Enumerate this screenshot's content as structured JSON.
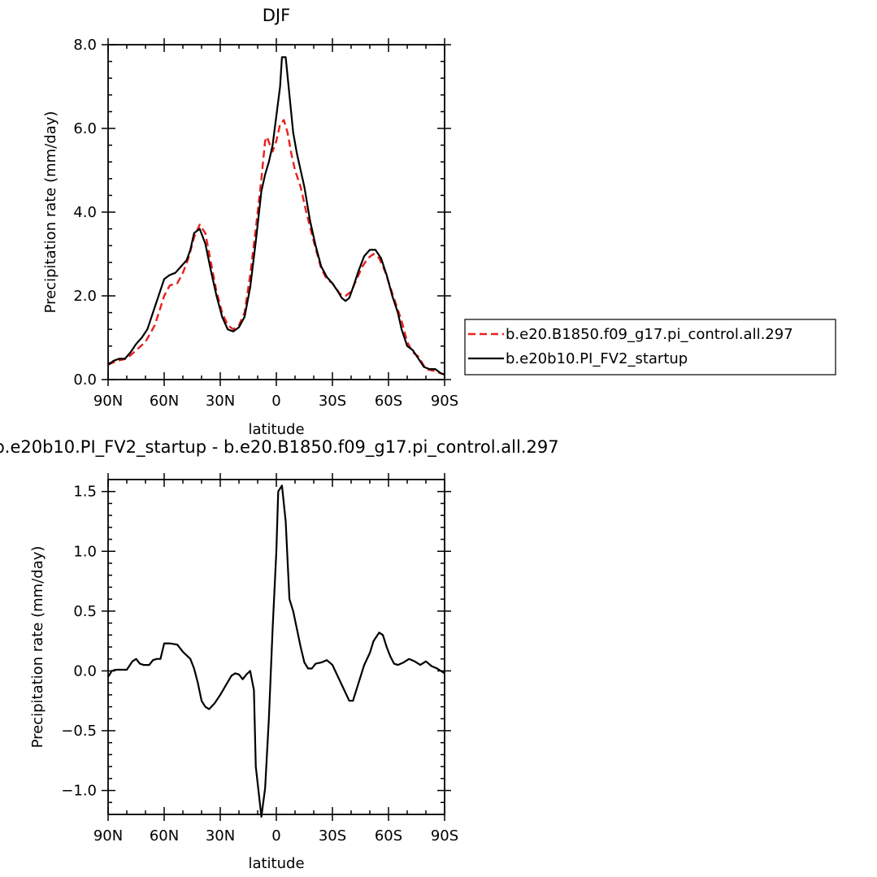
{
  "chart_data": [
    {
      "type": "line",
      "title": "DJF",
      "xlabel": "latitude",
      "ylabel": "Precipitation rate (mm/day)",
      "xlim": [
        90,
        -90
      ],
      "ylim": [
        0,
        8
      ],
      "x_ticks": [
        {
          "value": 90,
          "label": "90N"
        },
        {
          "value": 60,
          "label": "60N"
        },
        {
          "value": 30,
          "label": "30N"
        },
        {
          "value": 0,
          "label": "0"
        },
        {
          "value": -30,
          "label": "30S"
        },
        {
          "value": -60,
          "label": "60S"
        },
        {
          "value": -90,
          "label": "90S"
        }
      ],
      "y_ticks": [
        {
          "value": 0,
          "label": "0.0"
        },
        {
          "value": 2,
          "label": "2.0"
        },
        {
          "value": 4,
          "label": "4.0"
        },
        {
          "value": 6,
          "label": "6.0"
        },
        {
          "value": 8,
          "label": "8.0"
        }
      ],
      "legend_position": "right",
      "series": [
        {
          "name": "b.e20.B1850.f09_g17.pi_control.all.297",
          "color": "#e8201c",
          "dash": "dashed",
          "points": [
            [
              90,
              0.36
            ],
            [
              85,
              0.45
            ],
            [
              80,
              0.5
            ],
            [
              75,
              0.7
            ],
            [
              70,
              0.9
            ],
            [
              65,
              1.3
            ],
            [
              60,
              2.0
            ],
            [
              57,
              2.25
            ],
            [
              53,
              2.3
            ],
            [
              50,
              2.55
            ],
            [
              47,
              2.9
            ],
            [
              44,
              3.4
            ],
            [
              41,
              3.7
            ],
            [
              38,
              3.5
            ],
            [
              35,
              2.8
            ],
            [
              32,
              2.1
            ],
            [
              29,
              1.6
            ],
            [
              26,
              1.3
            ],
            [
              23,
              1.2
            ],
            [
              20,
              1.3
            ],
            [
              17,
              1.6
            ],
            [
              14,
              2.5
            ],
            [
              11,
              3.6
            ],
            [
              8,
              4.8
            ],
            [
              6,
              5.7
            ],
            [
              5,
              5.8
            ],
            [
              3,
              5.55
            ],
            [
              2,
              5.45
            ],
            [
              0,
              5.7
            ],
            [
              -2,
              6.1
            ],
            [
              -4,
              6.2
            ],
            [
              -6,
              5.9
            ],
            [
              -8,
              5.4
            ],
            [
              -10,
              5.0
            ],
            [
              -13,
              4.6
            ],
            [
              -16,
              4.0
            ],
            [
              -20,
              3.3
            ],
            [
              -24,
              2.65
            ],
            [
              -27,
              2.4
            ],
            [
              -30,
              2.3
            ],
            [
              -34,
              2.05
            ],
            [
              -37,
              2.0
            ],
            [
              -40,
              2.1
            ],
            [
              -43,
              2.4
            ],
            [
              -46,
              2.7
            ],
            [
              -49,
              2.9
            ],
            [
              -52,
              3.0
            ],
            [
              -55,
              2.9
            ],
            [
              -58,
              2.6
            ],
            [
              -61,
              2.2
            ],
            [
              -64,
              1.8
            ],
            [
              -67,
              1.4
            ],
            [
              -70,
              0.9
            ],
            [
              -73,
              0.65
            ],
            [
              -76,
              0.55
            ],
            [
              -80,
              0.25
            ],
            [
              -85,
              0.2
            ],
            [
              -88,
              0.15
            ],
            [
              -90,
              0.12
            ]
          ]
        },
        {
          "name": "b.e20b10.PI_FV2_startup",
          "color": "#000000",
          "dash": "solid",
          "points": [
            [
              90,
              0.35
            ],
            [
              87,
              0.45
            ],
            [
              84,
              0.5
            ],
            [
              81,
              0.5
            ],
            [
              78,
              0.65
            ],
            [
              75,
              0.85
            ],
            [
              72,
              1.0
            ],
            [
              69,
              1.2
            ],
            [
              66,
              1.6
            ],
            [
              63,
              2.0
            ],
            [
              60,
              2.4
            ],
            [
              57,
              2.5
            ],
            [
              54,
              2.55
            ],
            [
              51,
              2.7
            ],
            [
              48,
              2.85
            ],
            [
              46,
              3.1
            ],
            [
              44,
              3.5
            ],
            [
              41,
              3.6
            ],
            [
              38,
              3.25
            ],
            [
              35,
              2.6
            ],
            [
              32,
              2.0
            ],
            [
              29,
              1.5
            ],
            [
              26,
              1.2
            ],
            [
              23,
              1.15
            ],
            [
              20,
              1.25
            ],
            [
              17,
              1.5
            ],
            [
              14,
              2.2
            ],
            [
              11,
              3.3
            ],
            [
              8,
              4.5
            ],
            [
              6,
              4.9
            ],
            [
              4,
              5.2
            ],
            [
              2,
              5.6
            ],
            [
              0,
              6.3
            ],
            [
              -2,
              7.0
            ],
            [
              -3,
              7.7
            ],
            [
              -5,
              7.7
            ],
            [
              -7,
              6.8
            ],
            [
              -9,
              5.9
            ],
            [
              -11,
              5.4
            ],
            [
              -13,
              5.0
            ],
            [
              -15,
              4.6
            ],
            [
              -18,
              3.8
            ],
            [
              -21,
              3.2
            ],
            [
              -24,
              2.7
            ],
            [
              -27,
              2.45
            ],
            [
              -30,
              2.3
            ],
            [
              -33,
              2.1
            ],
            [
              -35,
              1.95
            ],
            [
              -37,
              1.88
            ],
            [
              -39,
              1.95
            ],
            [
              -41,
              2.2
            ],
            [
              -44,
              2.6
            ],
            [
              -47,
              2.95
            ],
            [
              -50,
              3.1
            ],
            [
              -53,
              3.1
            ],
            [
              -56,
              2.9
            ],
            [
              -59,
              2.5
            ],
            [
              -62,
              2.0
            ],
            [
              -65,
              1.6
            ],
            [
              -67,
              1.2
            ],
            [
              -70,
              0.8
            ],
            [
              -73,
              0.7
            ],
            [
              -76,
              0.5
            ],
            [
              -79,
              0.3
            ],
            [
              -82,
              0.25
            ],
            [
              -85,
              0.25
            ],
            [
              -88,
              0.15
            ],
            [
              -90,
              0.12
            ]
          ]
        }
      ]
    },
    {
      "type": "line",
      "title": "b.e20b10.PI_FV2_startup - b.e20.B1850.f09_g17.pi_control.all.297",
      "xlabel": "latitude",
      "ylabel": "Precipitation rate (mm/day)",
      "xlim": [
        90,
        -90
      ],
      "ylim": [
        -1.2,
        1.6
      ],
      "x_ticks": [
        {
          "value": 90,
          "label": "90N"
        },
        {
          "value": 60,
          "label": "60N"
        },
        {
          "value": 30,
          "label": "30N"
        },
        {
          "value": 0,
          "label": "0"
        },
        {
          "value": -30,
          "label": "30S"
        },
        {
          "value": -60,
          "label": "60S"
        },
        {
          "value": -90,
          "label": "90S"
        }
      ],
      "y_ticks": [
        {
          "value": -1.0,
          "label": "−1.0"
        },
        {
          "value": -0.5,
          "label": "−0.5"
        },
        {
          "value": 0.0,
          "label": "0.0"
        },
        {
          "value": 0.5,
          "label": "0.5"
        },
        {
          "value": 1.0,
          "label": "1.0"
        },
        {
          "value": 1.5,
          "label": "1.5"
        }
      ],
      "series": [
        {
          "color": "#000000",
          "dash": "solid",
          "points": [
            [
              90,
              -0.05
            ],
            [
              88,
              0.0
            ],
            [
              86,
              0.01
            ],
            [
              83,
              0.01
            ],
            [
              80,
              0.01
            ],
            [
              77,
              0.08
            ],
            [
              75,
              0.1
            ],
            [
              73,
              0.06
            ],
            [
              71,
              0.05
            ],
            [
              68,
              0.05
            ],
            [
              66,
              0.09
            ],
            [
              64,
              0.1
            ],
            [
              62,
              0.1
            ],
            [
              60,
              0.23
            ],
            [
              57,
              0.23
            ],
            [
              53,
              0.22
            ],
            [
              50,
              0.16
            ],
            [
              48,
              0.13
            ],
            [
              46,
              0.1
            ],
            [
              44,
              0.02
            ],
            [
              42,
              -0.1
            ],
            [
              40,
              -0.25
            ],
            [
              38,
              -0.3
            ],
            [
              36,
              -0.32
            ],
            [
              33,
              -0.27
            ],
            [
              30,
              -0.2
            ],
            [
              27,
              -0.12
            ],
            [
              24,
              -0.04
            ],
            [
              22,
              -0.02
            ],
            [
              20,
              -0.03
            ],
            [
              18,
              -0.07
            ],
            [
              16,
              -0.03
            ],
            [
              14,
              0.0
            ],
            [
              12,
              -0.16
            ],
            [
              11,
              -0.8
            ],
            [
              8,
              -1.22
            ],
            [
              6,
              -0.98
            ],
            [
              4,
              -0.4
            ],
            [
              2,
              0.35
            ],
            [
              0,
              1.0
            ],
            [
              -1,
              1.5
            ],
            [
              -3,
              1.55
            ],
            [
              -5,
              1.25
            ],
            [
              -7,
              0.6
            ],
            [
              -9,
              0.5
            ],
            [
              -11,
              0.35
            ],
            [
              -13,
              0.2
            ],
            [
              -15,
              0.07
            ],
            [
              -17,
              0.02
            ],
            [
              -19,
              0.02
            ],
            [
              -21,
              0.06
            ],
            [
              -24,
              0.07
            ],
            [
              -27,
              0.09
            ],
            [
              -30,
              0.05
            ],
            [
              -33,
              -0.05
            ],
            [
              -36,
              -0.15
            ],
            [
              -39,
              -0.25
            ],
            [
              -41,
              -0.25
            ],
            [
              -44,
              -0.1
            ],
            [
              -47,
              0.05
            ],
            [
              -50,
              0.15
            ],
            [
              -52,
              0.25
            ],
            [
              -55,
              0.32
            ],
            [
              -57,
              0.3
            ],
            [
              -59,
              0.2
            ],
            [
              -61,
              0.12
            ],
            [
              -63,
              0.06
            ],
            [
              -65,
              0.05
            ],
            [
              -68,
              0.07
            ],
            [
              -71,
              0.1
            ],
            [
              -74,
              0.08
            ],
            [
              -77,
              0.05
            ],
            [
              -80,
              0.08
            ],
            [
              -83,
              0.04
            ],
            [
              -86,
              0.02
            ],
            [
              -90,
              -0.02
            ]
          ]
        }
      ]
    }
  ]
}
